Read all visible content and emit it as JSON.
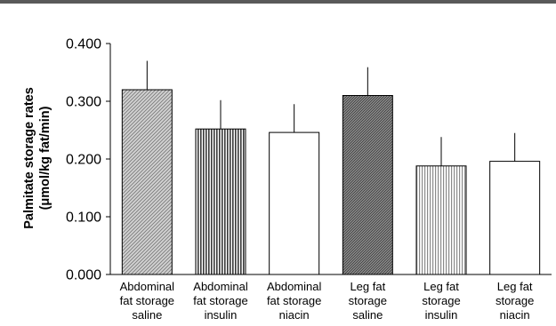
{
  "chart_data": {
    "type": "bar",
    "title": "",
    "xlabel": "",
    "ylabel_lines": [
      "Palmitate storage rates",
      "(μmol/kg fat/min)"
    ],
    "ylim": [
      0,
      0.4
    ],
    "yticks": [
      "0.000",
      "0.100",
      "0.200",
      "0.300",
      "0.400"
    ],
    "ytick_values": [
      0,
      0.1,
      0.2,
      0.3,
      0.4
    ],
    "categories": [
      [
        "Abdominal",
        "fat storage",
        "saline"
      ],
      [
        "Abdominal",
        "fat storage",
        "insulin"
      ],
      [
        "Abdominal",
        "fat storage",
        "niacin"
      ],
      [
        "Leg fat",
        "storage",
        "saline"
      ],
      [
        "Leg fat",
        "storage",
        "insulin"
      ],
      [
        "Leg fat",
        "storage",
        "niacin"
      ]
    ],
    "values": [
      0.32,
      0.252,
      0.246,
      0.31,
      0.188,
      0.196
    ],
    "error_upper": [
      0.37,
      0.302,
      0.295,
      0.359,
      0.238,
      0.245
    ],
    "fills": [
      "diagonal-light",
      "vertical-dense",
      "white",
      "diagonal-dense",
      "vertical-light",
      "white"
    ],
    "grid": false,
    "legend": "none"
  }
}
